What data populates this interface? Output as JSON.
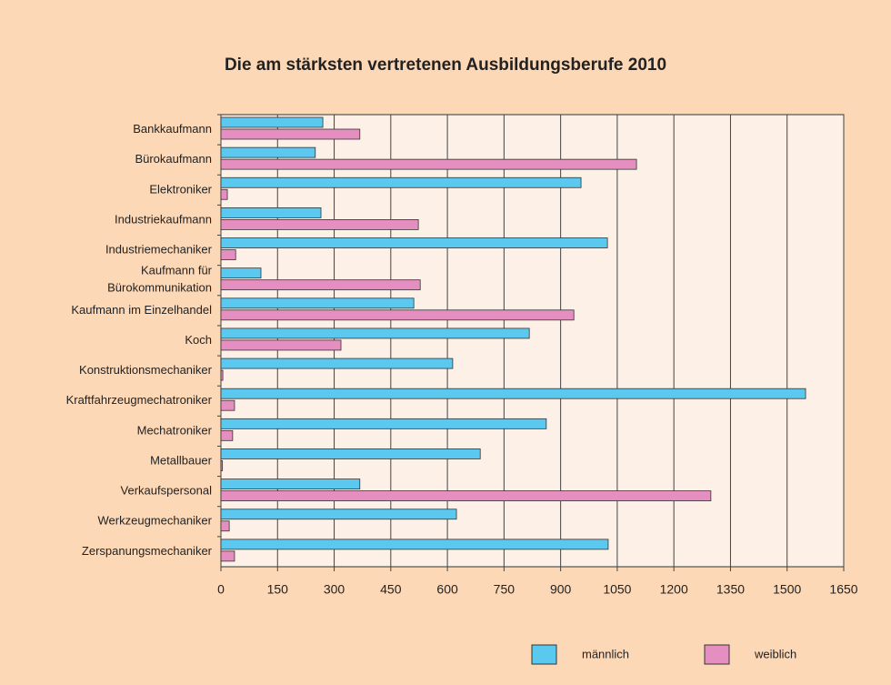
{
  "chart_data": {
    "type": "bar",
    "orientation": "horizontal",
    "title": "Die am stärksten vertretenen Ausbildungsberufe 2010",
    "categories": [
      "Bankkaufmann",
      "Bürokaufmann",
      "Elektroniker",
      "Industriekaufmann",
      "Industriemechaniker",
      "Kaufmann für\nBürokommunikation",
      "Kaufmann im Einzelhandel",
      "Koch",
      "Konstruktionsmechaniker",
      "Kraftfahrzeugmechatroniker",
      "Mechatroniker",
      "Metallbauer",
      "Verkaufspersonal",
      "Werkzeugmechaniker",
      "Zerspanungsmechaniker"
    ],
    "series": [
      {
        "name": "männlich",
        "color": "#5bc8f0",
        "values": [
          270,
          250,
          954,
          265,
          1024,
          106,
          511,
          817,
          614,
          1549,
          862,
          687,
          368,
          624,
          1026
        ]
      },
      {
        "name": "weiblich",
        "color": "#e58fc0",
        "values": [
          368,
          1101,
          17,
          523,
          39,
          528,
          935,
          318,
          5,
          36,
          31,
          4,
          1298,
          22,
          36
        ]
      }
    ],
    "xlim": [
      0,
      1650
    ],
    "xticks": [
      0,
      150,
      300,
      450,
      600,
      750,
      900,
      1050,
      1200,
      1350,
      1500,
      1650
    ],
    "grid": true,
    "legend": "bottom-right"
  }
}
